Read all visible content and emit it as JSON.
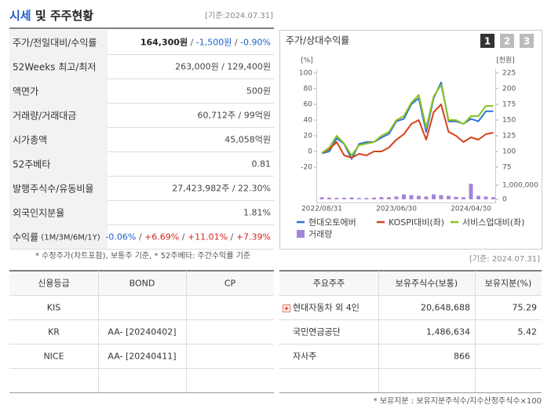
{
  "header": {
    "title": "시세",
    "title_rest": " 및 주주현황",
    "date": "[기준:2024.07.31]"
  },
  "price_table": {
    "rows": [
      {
        "label": [
          "주가/전일대비/수익률"
        ],
        "value": [
          {
            "text": "164,300원",
            "color": "#222222",
            "bold": true
          },
          {
            "text": " / ",
            "color": "#555555"
          },
          {
            "text": "-1,500원",
            "color": "#1d5fc9"
          },
          {
            "text": " / ",
            "color": "#555555"
          },
          {
            "text": "-0.90%",
            "color": "#1d5fc9"
          }
        ]
      },
      {
        "label": [
          "52Weeks 최고/최저"
        ],
        "value": [
          {
            "text": "263,000원 / 129,400원",
            "color": "#444444"
          }
        ]
      },
      {
        "label": [
          "액면가"
        ],
        "value": [
          {
            "text": "500원",
            "color": "#444444"
          }
        ]
      },
      {
        "label": [
          "거래량/거래대금"
        ],
        "value": [
          {
            "text": "60,712주 / 99억원",
            "color": "#444444"
          }
        ]
      },
      {
        "label": [
          "시가총액"
        ],
        "value": [
          {
            "text": "45,058억원",
            "color": "#444444"
          }
        ]
      },
      {
        "label": [
          "52주베타"
        ],
        "value": [
          {
            "text": "0.81",
            "color": "#444444"
          }
        ]
      },
      {
        "label": [
          "발행주식수/유동비율"
        ],
        "value": [
          {
            "text": "27,423,982주 / 22.30%",
            "color": "#444444"
          }
        ]
      },
      {
        "label": [
          "외국인지분율"
        ],
        "value": [
          {
            "text": "1.81%",
            "color": "#444444"
          }
        ]
      },
      {
        "label": [
          "수익률",
          " (1M/3M/6M/1Y)"
        ],
        "value": [
          {
            "text": "-0.06%",
            "color": "#1d5fc9"
          },
          {
            "text": " / ",
            "color": "#555555"
          },
          {
            "text": "+6.69%",
            "color": "#d0251d"
          },
          {
            "text": " / ",
            "color": "#555555"
          },
          {
            "text": "+11.01%",
            "color": "#d0251d"
          },
          {
            "text": " / ",
            "color": "#555555"
          },
          {
            "text": "+7.39%",
            "color": "#d0251d"
          }
        ]
      }
    ]
  },
  "price_note": "* 수정주가(차트포함), 보통주 기준, * 52주베타: 주간수익률 기준",
  "chart_panel": {
    "title": "주가/상대수익률",
    "tabs": [
      "1",
      "2",
      "3"
    ]
  },
  "chart_data": {
    "type": "line",
    "ylabel": "[%]",
    "y2label": "[천원]",
    "categories": [
      "2022/08/31",
      null,
      null,
      null,
      null,
      null,
      null,
      null,
      null,
      null,
      "2023/06/30",
      null,
      null,
      null,
      null,
      null,
      null,
      null,
      null,
      null,
      "2024/04/30",
      null,
      null,
      null
    ],
    "ylim": [
      -20,
      100
    ],
    "yticks": [
      -20,
      0,
      20,
      40,
      60,
      80,
      100
    ],
    "y2lim": [
      75,
      225
    ],
    "y2ticks": [
      75,
      100,
      125,
      150,
      175,
      200,
      225
    ],
    "volume_lim": [
      0,
      1000000
    ],
    "volume_ticks": [
      0,
      {
        "value": 1000000,
        "label": "1,000,000"
      }
    ],
    "series": [
      {
        "name": "현대오토에버",
        "color": "#2f72d0",
        "axis": "y2",
        "values": [
          97,
          100,
          121,
          112,
          88,
          112,
          115,
          115,
          122,
          128,
          148,
          152,
          175,
          185,
          131,
          185,
          210,
          148,
          148,
          144,
          152,
          148,
          164,
          164
        ]
      },
      {
        "name": "KOSPI대비(좌)",
        "color": "#d6401c",
        "axis": "y",
        "values": [
          -2,
          3,
          12,
          -5,
          -8,
          -3,
          -5,
          0,
          0,
          5,
          15,
          22,
          35,
          40,
          15,
          50,
          60,
          25,
          20,
          12,
          18,
          15,
          22,
          24
        ]
      },
      {
        "name": "서비스업대비(좌)",
        "color": "#8cc21f",
        "axis": "y",
        "values": [
          -2,
          5,
          20,
          10,
          -5,
          8,
          10,
          12,
          20,
          25,
          40,
          45,
          62,
          72,
          30,
          70,
          85,
          40,
          40,
          35,
          45,
          45,
          58,
          58
        ]
      },
      {
        "name": "거래량",
        "color": "#a585d8",
        "axis": "volume",
        "type": "bar",
        "values": [
          150000,
          120000,
          100000,
          110000,
          130000,
          90000,
          100000,
          120000,
          160000,
          150000,
          200000,
          350000,
          300000,
          250000,
          200000,
          350000,
          300000,
          250000,
          180000,
          150000,
          1100000,
          250000,
          200000,
          150000
        ]
      }
    ]
  },
  "credit_table": {
    "header": [
      "신용등급",
      "BOND",
      "CP"
    ],
    "rows": [
      [
        "KIS",
        null,
        null
      ],
      [
        "KR",
        "AA-  [20240402]",
        null
      ],
      [
        "NICE",
        "AA-  [20240411]",
        null
      ],
      [
        null,
        null,
        null
      ]
    ]
  },
  "holder_table": {
    "date": "[기준: 2024.07.31]",
    "header": [
      "주요주주",
      "보유주식수(보통)",
      "보유지분(%)"
    ],
    "rows": [
      [
        "현대자동차 외 4인",
        "20,648,688",
        "75.29"
      ],
      [
        "국민연금공단",
        "1,486,634",
        "5.42"
      ],
      [
        "자사주",
        "866",
        null
      ],
      [
        null,
        null,
        null
      ]
    ]
  },
  "holder_note": "* 보유지분 : 보유지분주식수/지수산정주식수×100"
}
